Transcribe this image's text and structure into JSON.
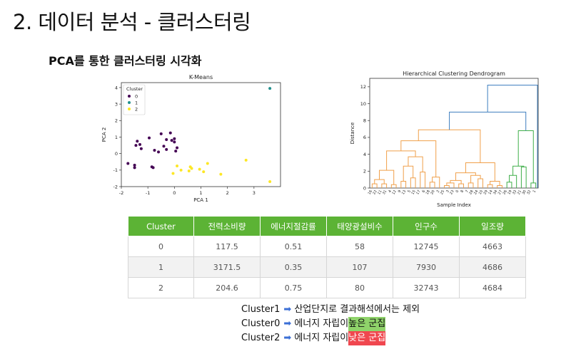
{
  "slide": {
    "title": "2. 데이터 분석 - 클러스터링",
    "subtitle": "PCA를 통한 클러스터링 시각화"
  },
  "chart_data": [
    {
      "type": "scatter",
      "title": "K-Means",
      "xlabel": "PCA 1",
      "ylabel": "PCA 2",
      "xlim": [
        -2,
        4
      ],
      "ylim": [
        -2,
        4.3
      ],
      "xticks": [
        -2,
        -1,
        0,
        1,
        2,
        3
      ],
      "yticks": [
        -2,
        -1,
        0,
        1,
        2,
        3,
        4
      ],
      "legend": {
        "title": "Cluster",
        "placement": "top-left"
      },
      "series": [
        {
          "name": "0",
          "color": "#440154",
          "points": [
            [
              -1.75,
              -0.6
            ],
            [
              -1.5,
              -0.7
            ],
            [
              -1.5,
              -0.85
            ],
            [
              -1.45,
              0.5
            ],
            [
              -1.4,
              0.75
            ],
            [
              -1.3,
              0.55
            ],
            [
              -1.25,
              0.3
            ],
            [
              -0.95,
              0.95
            ],
            [
              -0.85,
              -0.8
            ],
            [
              -0.8,
              -0.85
            ],
            [
              -0.75,
              0.2
            ],
            [
              -0.6,
              0.1
            ],
            [
              -0.5,
              1.2
            ],
            [
              -0.4,
              0.45
            ],
            [
              -0.3,
              0.25
            ],
            [
              -0.3,
              0.85
            ],
            [
              -0.15,
              1.25
            ],
            [
              -0.1,
              0.8
            ],
            [
              0.0,
              0.9
            ],
            [
              0.0,
              0.7
            ],
            [
              0.1,
              0.35
            ],
            [
              0.05,
              0.15
            ]
          ]
        },
        {
          "name": "1",
          "color": "#21908d",
          "points": [
            [
              3.6,
              3.95
            ]
          ]
        },
        {
          "name": "2",
          "color": "#fde725",
          "points": [
            [
              -0.05,
              -1.2
            ],
            [
              0.1,
              -0.75
            ],
            [
              0.25,
              -1.0
            ],
            [
              0.55,
              -1.05
            ],
            [
              0.6,
              -0.8
            ],
            [
              0.65,
              -0.9
            ],
            [
              0.95,
              -0.95
            ],
            [
              1.1,
              -1.1
            ],
            [
              1.25,
              -0.6
            ],
            [
              1.75,
              -1.25
            ],
            [
              2.7,
              -0.4
            ],
            [
              3.6,
              -1.7
            ]
          ]
        }
      ]
    },
    {
      "type": "dendrogram",
      "title": "Hierarchical Clustering Dendrogram",
      "xlabel": "Sample Index",
      "ylabel": "Distance",
      "ylim": [
        0,
        13
      ],
      "yticks": [
        0,
        2,
        4,
        6,
        8,
        10,
        12
      ],
      "leaf_labels": [
        "16",
        "22",
        "11",
        "31",
        "4",
        "12",
        "9",
        "13",
        "5",
        "15",
        "17",
        "6",
        "18",
        "20",
        "2",
        "25",
        "3",
        "23",
        "0",
        "8",
        "7",
        "28",
        "24",
        "10",
        "29",
        "14",
        "34",
        "27",
        "26",
        "19",
        "33",
        "21",
        "30",
        "32",
        "1"
      ]
    }
  ],
  "table": {
    "headers": [
      "Cluster",
      "전력소비량",
      "에너지절감률",
      "태양광설비수",
      "인구수",
      "일조량"
    ],
    "rows": [
      [
        "0",
        "117.5",
        "0.51",
        "58",
        "12745",
        "4663"
      ],
      [
        "1",
        "3171.5",
        "0.35",
        "107",
        "7930",
        "4686"
      ],
      [
        "2",
        "204.6",
        "0.75",
        "80",
        "32743",
        "4684"
      ]
    ]
  },
  "notes": [
    {
      "label": "Cluster1",
      "arrow": "➡",
      "text": "산업단지로 결과해석에서는 제외",
      "highlight": ""
    },
    {
      "label": "Cluster0",
      "arrow": "➡",
      "text": "에너지 자립이 ",
      "highlight": "높은 군집",
      "highlight_color": "#8fd36a"
    },
    {
      "label": "Cluster2",
      "arrow": "➡",
      "text": "에너지 자립이 ",
      "highlight": "낮은 군집",
      "highlight_color": "#f0474f"
    }
  ]
}
